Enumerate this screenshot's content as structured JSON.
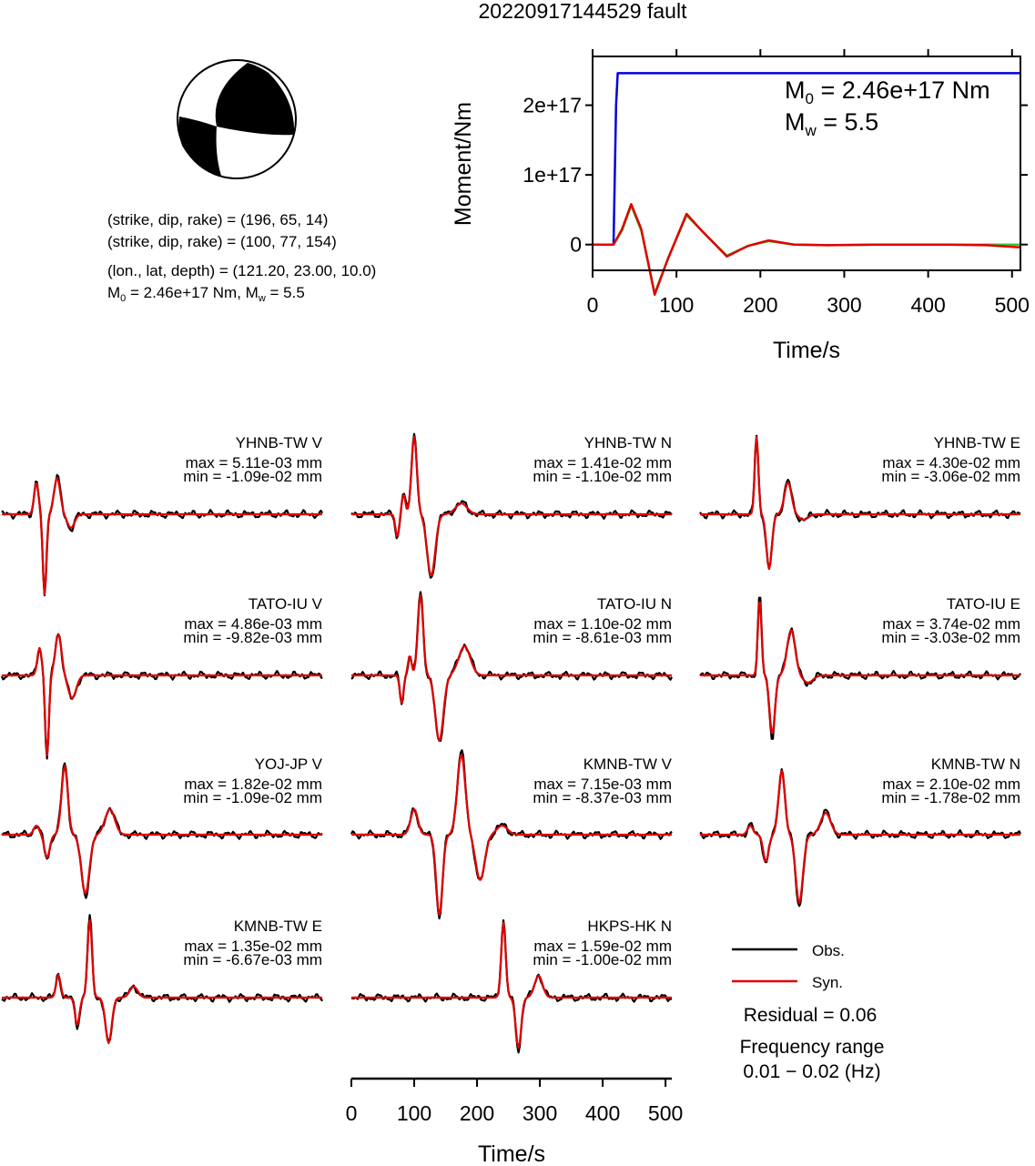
{
  "title": "20220917144529 fault",
  "colors": {
    "obs": "#000000",
    "syn": "#e00000",
    "stf": "#0000dd",
    "green": "#33cc33",
    "beach": "#000000"
  },
  "source_info": {
    "plane1": "(strike, dip, rake) = (196, 65, 14)",
    "plane2": "(strike, dip, rake) = (100, 77, 154)",
    "location": "(lon., lat, depth) = (121.20, 23.00, 10.0)",
    "moment_prefix": "M",
    "moment_sub": "0",
    "moment_text": " = 2.46e+17 Nm, M",
    "mw_sub": "w",
    "mw_text": " = 5.5"
  },
  "stf_panel": {
    "m0_main": "M",
    "m0_sub": "0",
    "m0_value": " = 2.46e+17 Nm",
    "mw_main": "M",
    "mw_sub": "w",
    "mw_value": " = 5.5",
    "ylabel": "Moment/Nm",
    "xlabel": "Time/s",
    "yticks": [
      "0",
      "1e+17",
      "2e+17"
    ],
    "xticks": [
      "0",
      "100",
      "200",
      "300",
      "400",
      "500"
    ]
  },
  "chart_data": [
    {
      "type": "line",
      "panel": "moment rate / source time function",
      "xlabel": "Time/s",
      "ylabel": "Moment/Nm",
      "xlim": [
        0,
        510
      ],
      "ylim": [
        -3.7e+16,
        2.7e+17
      ],
      "series": [
        {
          "color": "#0000dd",
          "x": [
            0,
            25,
            28,
            30,
            510
          ],
          "y": [
            0,
            0,
            2e+17,
            2.46e+17,
            2.46e+17
          ]
        },
        {
          "color": "#33cc33",
          "x": [
            0,
            25,
            35,
            46,
            58,
            74,
            90,
            112,
            130,
            160,
            185,
            210,
            240,
            280,
            340,
            420,
            470,
            510
          ],
          "y": [
            0,
            0,
            2e+16,
            5.6e+16,
            2e+16,
            -7e+16,
            -2e+16,
            4.2e+16,
            2e+16,
            -1.6e+16,
            -2000000000000000.0,
            5000000000000000.0,
            0,
            -1000000000000000.0,
            0,
            0,
            0,
            0
          ]
        },
        {
          "color": "#e00000",
          "x": [
            0,
            25,
            35,
            46,
            58,
            74,
            90,
            112,
            130,
            160,
            185,
            210,
            240,
            280,
            340,
            420,
            470,
            510
          ],
          "y": [
            0,
            0,
            2.2e+16,
            5.8e+16,
            2.2e+16,
            -7.2e+16,
            -2e+16,
            4.4e+16,
            2e+16,
            -1.7e+16,
            -2000000000000000.0,
            6000000000000000.0,
            0,
            -1000000000000000.0,
            0,
            0,
            -1000000000000000.0,
            -4000000000000000.0
          ]
        }
      ]
    }
  ],
  "stations": [
    {
      "name": "YHNB-TW V",
      "max": "max = 5.11e-03 mm",
      "min": "min = -1.09e-02 mm"
    },
    {
      "name": "YHNB-TW N",
      "max": "max = 1.41e-02 mm",
      "min": "min = -1.10e-02 mm"
    },
    {
      "name": "YHNB-TW E",
      "max": "max = 4.30e-02 mm",
      "min": "min = -3.06e-02 mm"
    },
    {
      "name": "TATO-IU V",
      "max": "max = 4.86e-03 mm",
      "min": "min = -9.82e-03 mm"
    },
    {
      "name": "TATO-IU N",
      "max": "max = 1.10e-02 mm",
      "min": "min = -8.61e-03 mm"
    },
    {
      "name": "TATO-IU E",
      "max": "max = 3.74e-02 mm",
      "min": "min = -3.03e-02 mm"
    },
    {
      "name": "YOJ-JP V",
      "max": "max = 1.82e-02 mm",
      "min": "min = -1.09e-02 mm"
    },
    {
      "name": "KMNB-TW V",
      "max": "max = 7.15e-03 mm",
      "min": "min = -8.37e-03 mm"
    },
    {
      "name": "KMNB-TW N",
      "max": "max = 2.10e-02 mm",
      "min": "min = -1.78e-02 mm"
    },
    {
      "name": "KMNB-TW E",
      "max": "max = 1.35e-02 mm",
      "min": "min = -6.67e-03 mm"
    },
    {
      "name": "HKPS-HK N",
      "max": "max = 1.59e-02 mm",
      "min": "min = -1.00e-02 mm"
    }
  ],
  "legend": {
    "obs": "Obs.",
    "syn": "Syn.",
    "residual": "Residual = 0.06",
    "freq_title": "Frequency range",
    "freq_value": "0.01 − 0.02 (Hz)"
  },
  "bottom_axis": {
    "xlabel": "Time/s",
    "xticks": [
      "0",
      "100",
      "200",
      "300",
      "400",
      "500"
    ],
    "xlim": [
      0,
      510
    ]
  }
}
